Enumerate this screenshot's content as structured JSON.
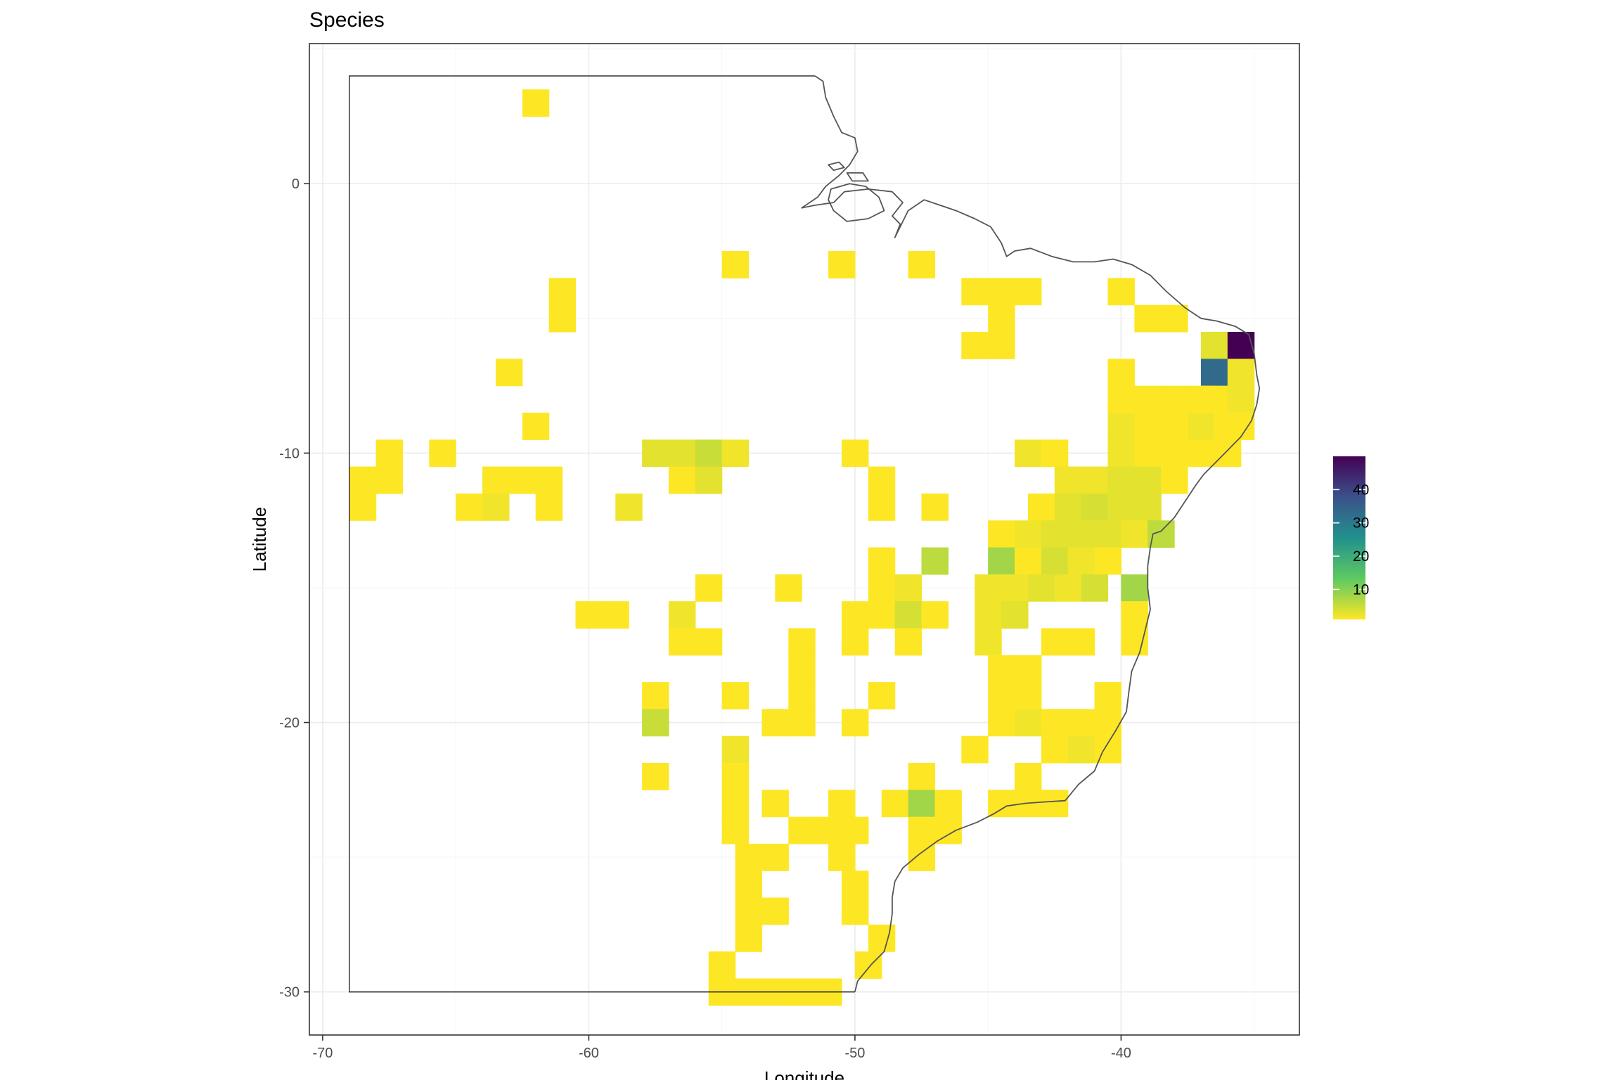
{
  "chart_data": {
    "type": "heatmap",
    "title": "Species",
    "xlabel": "Longitude",
    "ylabel": "Latitude",
    "xlim": [
      -70.5,
      -33.3
    ],
    "ylim": [
      -31.6,
      5.2
    ],
    "x_ticks": [
      -70,
      -60,
      -50,
      -40
    ],
    "y_ticks": [
      0,
      -10,
      -20,
      -30
    ],
    "x_tick_labels": [
      "-70",
      "-60",
      "-50",
      "-40"
    ],
    "y_tick_labels": [
      "0",
      "-10",
      "-20",
      "-30"
    ],
    "grid": true,
    "cell_size_deg": 1,
    "legend": {
      "position": "right",
      "min": 1,
      "max": 50,
      "breaks": [
        10,
        20,
        30,
        40
      ],
      "break_labels": [
        "10",
        "20",
        "30",
        "40"
      ],
      "palette": "viridis-reversed",
      "colors": [
        "#fde725",
        "#5ec962",
        "#21918c",
        "#3b528b",
        "#440154"
      ]
    },
    "cells": [
      [
        -62,
        3,
        1
      ],
      [
        -54.5,
        -3,
        1
      ],
      [
        -50.5,
        -3,
        1
      ],
      [
        -47.5,
        -3,
        1
      ],
      [
        -61,
        -4,
        1
      ],
      [
        -61,
        -5,
        1
      ],
      [
        -45.5,
        -4,
        1
      ],
      [
        -44.5,
        -4,
        1
      ],
      [
        -43.5,
        -4,
        1
      ],
      [
        -40,
        -4,
        1
      ],
      [
        -44.5,
        -5,
        1
      ],
      [
        -39,
        -5,
        1
      ],
      [
        -38,
        -5,
        1
      ],
      [
        -45.5,
        -6,
        1
      ],
      [
        -44.5,
        -6,
        1
      ],
      [
        -36.5,
        -6,
        3
      ],
      [
        -35.5,
        -6,
        50
      ],
      [
        -63,
        -7,
        1
      ],
      [
        -40,
        -7,
        1
      ],
      [
        -36.5,
        -7,
        33
      ],
      [
        -35.5,
        -7,
        2
      ],
      [
        -40,
        -8,
        1
      ],
      [
        -39,
        -8,
        1
      ],
      [
        -38,
        -8,
        1
      ],
      [
        -37,
        -8,
        1
      ],
      [
        -36.5,
        -8,
        1
      ],
      [
        -35.5,
        -8,
        2
      ],
      [
        -62,
        -9,
        1
      ],
      [
        -40,
        -9,
        2
      ],
      [
        -39,
        -9,
        1
      ],
      [
        -38,
        -9,
        1
      ],
      [
        -37,
        -9,
        2
      ],
      [
        -36,
        -9,
        1
      ],
      [
        -35.5,
        -9,
        1
      ],
      [
        -67.5,
        -10,
        1
      ],
      [
        -65.5,
        -10,
        1
      ],
      [
        -57.5,
        -10,
        3
      ],
      [
        -56.5,
        -10,
        3
      ],
      [
        -55.5,
        -10,
        5
      ],
      [
        -54.5,
        -10,
        2
      ],
      [
        -50,
        -10,
        1
      ],
      [
        -43.5,
        -10,
        2
      ],
      [
        -42.5,
        -10,
        1
      ],
      [
        -40,
        -10,
        2
      ],
      [
        -39,
        -10,
        1
      ],
      [
        -38,
        -10,
        1
      ],
      [
        -37,
        -10,
        1
      ],
      [
        -36,
        -10,
        1
      ],
      [
        -68.5,
        -11,
        1
      ],
      [
        -67.5,
        -11,
        1
      ],
      [
        -63.5,
        -11,
        1
      ],
      [
        -62.5,
        -11,
        1
      ],
      [
        -61.5,
        -11,
        1
      ],
      [
        -56.5,
        -11,
        1
      ],
      [
        -55.5,
        -11,
        3
      ],
      [
        -49,
        -11,
        1
      ],
      [
        -42,
        -11,
        2
      ],
      [
        -41,
        -11,
        2
      ],
      [
        -40,
        -11,
        3
      ],
      [
        -39,
        -11,
        3
      ],
      [
        -38,
        -11,
        1
      ],
      [
        -68.5,
        -12,
        1
      ],
      [
        -64.5,
        -12,
        1
      ],
      [
        -63.5,
        -12,
        2
      ],
      [
        -61.5,
        -12,
        1
      ],
      [
        -58.5,
        -12,
        2
      ],
      [
        -49,
        -12,
        1
      ],
      [
        -47,
        -12,
        1
      ],
      [
        -43,
        -12,
        1
      ],
      [
        -42,
        -12,
        3
      ],
      [
        -41,
        -12,
        4
      ],
      [
        -40,
        -12,
        3
      ],
      [
        -39,
        -12,
        3
      ],
      [
        -44.5,
        -13,
        1
      ],
      [
        -43.5,
        -13,
        2
      ],
      [
        -42.5,
        -13,
        3
      ],
      [
        -41.5,
        -13,
        3
      ],
      [
        -40.5,
        -13,
        3
      ],
      [
        -39.5,
        -13,
        2
      ],
      [
        -38.5,
        -13,
        6
      ],
      [
        -49,
        -14,
        1
      ],
      [
        -47,
        -14,
        6
      ],
      [
        -44.5,
        -14,
        8
      ],
      [
        -43.5,
        -14,
        1
      ],
      [
        -42.5,
        -14,
        4
      ],
      [
        -41.5,
        -14,
        2
      ],
      [
        -40.5,
        -14,
        1
      ],
      [
        -49,
        -15,
        1
      ],
      [
        -48,
        -15,
        2
      ],
      [
        -45,
        -15,
        2
      ],
      [
        -44,
        -15,
        2
      ],
      [
        -43,
        -15,
        3
      ],
      [
        -42,
        -15,
        2
      ],
      [
        -41,
        -15,
        4
      ],
      [
        -39.5,
        -15,
        8
      ],
      [
        -55.5,
        -15,
        1
      ],
      [
        -52.5,
        -15,
        1
      ],
      [
        -60,
        -16,
        1
      ],
      [
        -59,
        -16,
        1
      ],
      [
        -56.5,
        -16,
        2
      ],
      [
        -50,
        -16,
        1
      ],
      [
        -49,
        -16,
        1
      ],
      [
        -48,
        -16,
        4
      ],
      [
        -47,
        -16,
        1
      ],
      [
        -45,
        -16,
        2
      ],
      [
        -44,
        -16,
        3
      ],
      [
        -39.5,
        -16,
        1
      ],
      [
        -56.5,
        -17,
        1
      ],
      [
        -55.5,
        -17,
        1
      ],
      [
        -52,
        -17,
        1
      ],
      [
        -50,
        -17,
        1
      ],
      [
        -48,
        -17,
        1
      ],
      [
        -45,
        -17,
        2
      ],
      [
        -42.5,
        -17,
        1
      ],
      [
        -41.5,
        -17,
        1
      ],
      [
        -39.5,
        -17,
        1
      ],
      [
        -52,
        -18,
        1
      ],
      [
        -44.5,
        -18,
        1
      ],
      [
        -43.5,
        -18,
        1
      ],
      [
        -57.5,
        -19,
        1
      ],
      [
        -54.5,
        -19,
        1
      ],
      [
        -52,
        -19,
        1
      ],
      [
        -49,
        -19,
        1
      ],
      [
        -44.5,
        -19,
        1
      ],
      [
        -43.5,
        -19,
        1
      ],
      [
        -40.5,
        -19,
        1
      ],
      [
        -57.5,
        -20,
        5
      ],
      [
        -53,
        -20,
        1
      ],
      [
        -52,
        -20,
        1
      ],
      [
        -50,
        -20,
        1
      ],
      [
        -44.5,
        -20,
        1
      ],
      [
        -43.5,
        -20,
        2
      ],
      [
        -42.5,
        -20,
        1
      ],
      [
        -41.5,
        -20,
        1
      ],
      [
        -40.5,
        -20,
        1
      ],
      [
        -54.5,
        -21,
        2
      ],
      [
        -45.5,
        -21,
        1
      ],
      [
        -42.5,
        -21,
        1
      ],
      [
        -41.5,
        -21,
        2
      ],
      [
        -40.5,
        -21,
        1
      ],
      [
        -57.5,
        -22,
        1
      ],
      [
        -54.5,
        -22,
        1
      ],
      [
        -47.5,
        -22,
        1
      ],
      [
        -43.5,
        -22,
        1
      ],
      [
        -54.5,
        -23,
        1
      ],
      [
        -53,
        -23,
        1
      ],
      [
        -50.5,
        -23,
        1
      ],
      [
        -48.5,
        -23,
        1
      ],
      [
        -47.5,
        -23,
        8
      ],
      [
        -46.5,
        -23,
        1
      ],
      [
        -44.5,
        -23,
        1
      ],
      [
        -43.5,
        -23,
        1
      ],
      [
        -42.5,
        -23,
        1
      ],
      [
        -54.5,
        -24,
        1
      ],
      [
        -52,
        -24,
        1
      ],
      [
        -51,
        -24,
        1
      ],
      [
        -50,
        -24,
        1
      ],
      [
        -47.5,
        -24,
        1
      ],
      [
        -46.5,
        -24,
        1
      ],
      [
        -54,
        -25,
        1
      ],
      [
        -53,
        -25,
        1
      ],
      [
        -50.5,
        -25,
        1
      ],
      [
        -47.5,
        -25,
        1
      ],
      [
        -54,
        -26,
        1
      ],
      [
        -50,
        -26,
        1
      ],
      [
        -54,
        -27,
        1
      ],
      [
        -53,
        -27,
        1
      ],
      [
        -50,
        -27,
        1
      ],
      [
        -54,
        -28,
        1
      ],
      [
        -49,
        -28,
        1
      ],
      [
        -55,
        -29,
        1
      ],
      [
        -49.5,
        -29,
        1
      ],
      [
        -55,
        -30,
        1
      ],
      [
        -54,
        -30,
        1
      ],
      [
        -53,
        -30,
        1
      ],
      [
        -52,
        -30,
        1
      ],
      [
        -51,
        -30,
        1
      ]
    ]
  }
}
